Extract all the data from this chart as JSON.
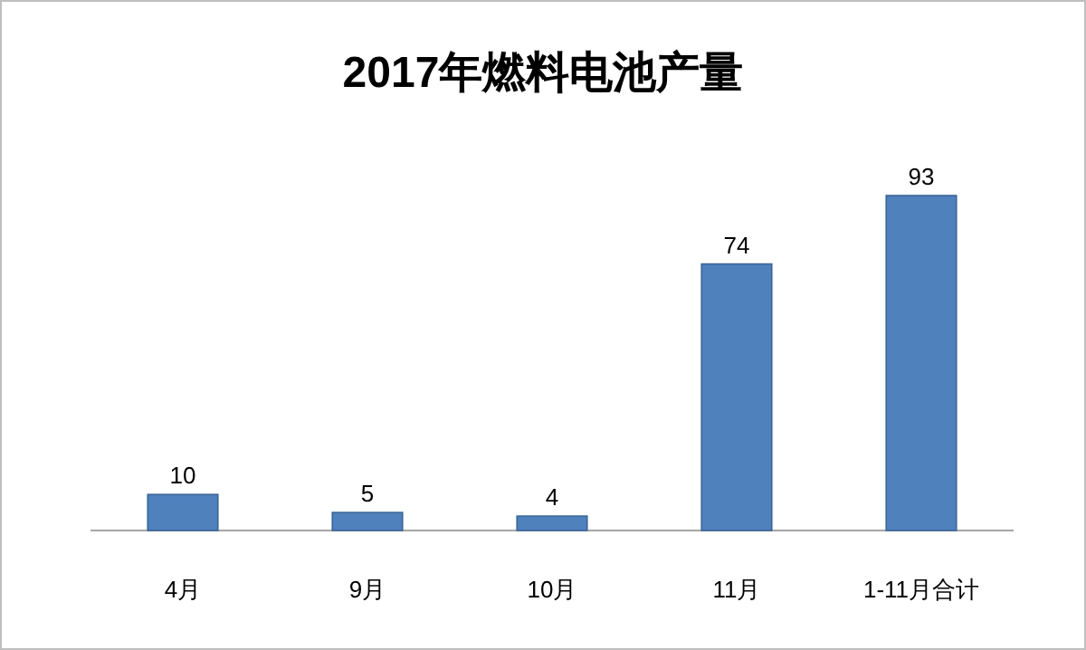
{
  "chart_data": {
    "type": "bar",
    "title": "2017年燃料电池产量",
    "categories": [
      "4月",
      "9月",
      "10月",
      "11月",
      "1-11月合计"
    ],
    "values": [
      10,
      5,
      4,
      74,
      93
    ],
    "color": "#4f81bd",
    "data_labels": true
  }
}
